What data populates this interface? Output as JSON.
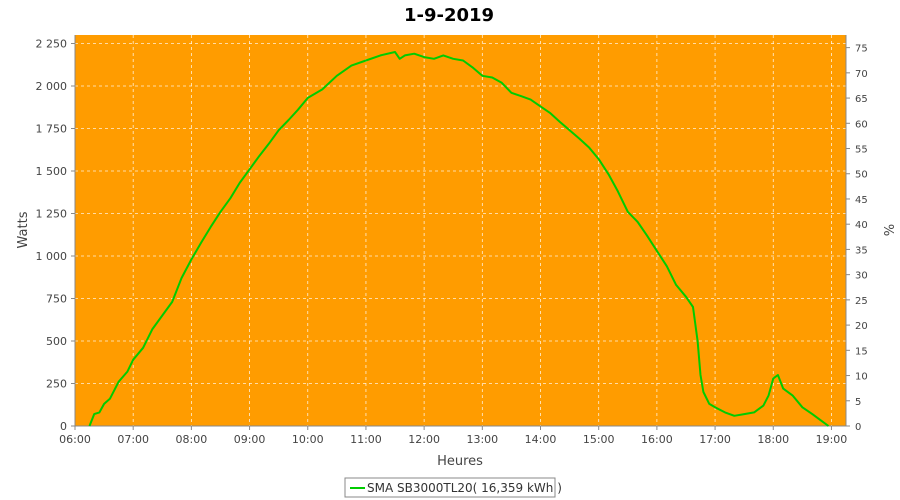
{
  "chart_data": {
    "type": "line",
    "title": "1-9-2019",
    "xlabel": "Heures",
    "ylabel": "Watts",
    "y2label": "%",
    "xlim": [
      6.0,
      19.25
    ],
    "ylim": [
      0,
      2300
    ],
    "y2lim": [
      0,
      77.5
    ],
    "x_ticks": [
      6,
      7,
      8,
      9,
      10,
      11,
      12,
      13,
      14,
      15,
      16,
      17,
      18,
      19
    ],
    "x_tick_labels": [
      "06:00",
      "07:00",
      "08:00",
      "09:00",
      "10:00",
      "11:00",
      "12:00",
      "13:00",
      "14:00",
      "15:00",
      "16:00",
      "17:00",
      "18:00",
      "19:00"
    ],
    "y_ticks": [
      0,
      250,
      500,
      750,
      1000,
      1250,
      1500,
      1750,
      2000,
      2250
    ],
    "y_tick_labels": [
      "0",
      "250",
      "500",
      "750",
      "1 000",
      "1 250",
      "1 500",
      "1 750",
      "2 000",
      "2 250"
    ],
    "y2_ticks": [
      0,
      5,
      10,
      15,
      20,
      25,
      30,
      35,
      40,
      45,
      50,
      55,
      60,
      65,
      70,
      75
    ],
    "y2_tick_labels": [
      "0",
      "5",
      "10",
      "15",
      "20",
      "25",
      "30",
      "35",
      "40",
      "45",
      "50",
      "55",
      "60",
      "65",
      "70",
      "75"
    ],
    "grid": true,
    "plot_background": "#FF9C00",
    "legend_position": "bottom",
    "series": [
      {
        "name": "SMA SB3000TL20( 16,359 kWh )",
        "color": "#00CC00",
        "x": [
          6.25,
          6.33,
          6.42,
          6.5,
          6.6,
          6.75,
          6.9,
          7.0,
          7.17,
          7.33,
          7.5,
          7.67,
          7.83,
          8.0,
          8.17,
          8.33,
          8.5,
          8.67,
          8.83,
          9.0,
          9.17,
          9.33,
          9.5,
          9.67,
          9.83,
          10.0,
          10.25,
          10.5,
          10.75,
          11.0,
          11.25,
          11.5,
          11.58,
          11.67,
          11.83,
          12.0,
          12.17,
          12.33,
          12.5,
          12.67,
          12.83,
          13.0,
          13.17,
          13.33,
          13.5,
          13.67,
          13.83,
          14.0,
          14.17,
          14.33,
          14.5,
          14.67,
          14.83,
          15.0,
          15.17,
          15.33,
          15.5,
          15.67,
          15.83,
          16.0,
          16.17,
          16.33,
          16.5,
          16.62,
          16.7,
          16.75,
          16.8,
          16.9,
          17.0,
          17.17,
          17.33,
          17.5,
          17.67,
          17.83,
          17.92,
          18.0,
          18.08,
          18.17,
          18.33,
          18.5,
          18.67,
          18.83,
          18.95
        ],
        "y": [
          0,
          70,
          80,
          130,
          160,
          260,
          320,
          390,
          460,
          570,
          650,
          730,
          870,
          980,
          1080,
          1170,
          1260,
          1340,
          1430,
          1510,
          1590,
          1660,
          1740,
          1800,
          1860,
          1930,
          1980,
          2060,
          2120,
          2150,
          2180,
          2200,
          2160,
          2180,
          2190,
          2170,
          2160,
          2180,
          2160,
          2150,
          2110,
          2060,
          2050,
          2020,
          1960,
          1940,
          1920,
          1880,
          1840,
          1790,
          1740,
          1690,
          1640,
          1570,
          1480,
          1380,
          1260,
          1200,
          1120,
          1030,
          940,
          830,
          760,
          700,
          500,
          300,
          200,
          130,
          110,
          80,
          60,
          70,
          80,
          120,
          180,
          280,
          300,
          220,
          180,
          110,
          70,
          30,
          0
        ]
      }
    ]
  }
}
